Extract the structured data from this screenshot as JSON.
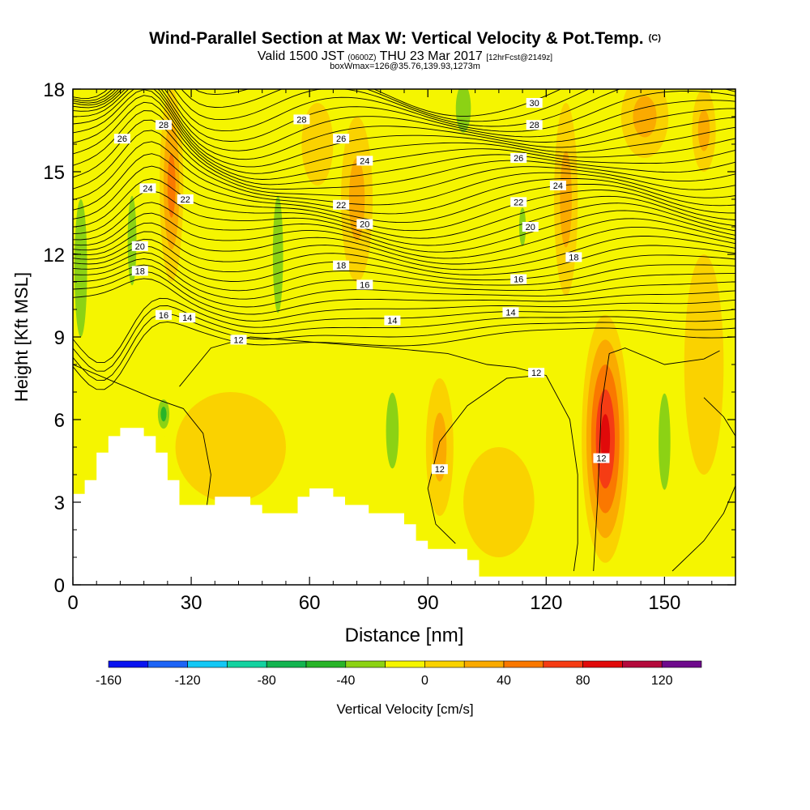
{
  "chart_data": {
    "type": "heatmap",
    "title": "Wind-Parallel Section at Max W: Vertical Velocity & Pot.Temp.",
    "title_suffix": "(C)",
    "subtitle": {
      "prefix": "Valid 1500 JST",
      "utc": "(0600Z)",
      "date": "THU 23 Mar 2017",
      "run": "[12hrFcst@2149z]"
    },
    "subtitle2": "boxWmax=126@35.76,139.93,1273m",
    "xlabel": "Distance [nm]",
    "ylabel": "Height [Kft MSL]",
    "xlim": [
      0,
      168
    ],
    "ylim": [
      0,
      18
    ],
    "x_ticks": [
      0,
      30,
      60,
      90,
      120,
      150
    ],
    "y_ticks": [
      0,
      3,
      6,
      9,
      12,
      15,
      18
    ],
    "colorbar": {
      "label": "Vertical Velocity [cm/s]",
      "tick_labels": [
        -160,
        -120,
        -80,
        -40,
        0,
        40,
        80,
        120
      ],
      "colors": [
        "#0a14f0",
        "#1e64f5",
        "#14c8f5",
        "#14d2a0",
        "#14b450",
        "#28b428",
        "#8cd214",
        "#f5f500",
        "#fad200",
        "#faaa00",
        "#fa7800",
        "#f53c14",
        "#e10a0a",
        "#b40a3c",
        "#6e0a8c"
      ]
    },
    "background_color": "#f5f500",
    "velocity_features": [
      {
        "x": 2,
        "y": 11.5,
        "w": 3.2,
        "h": 10,
        "value": -25
      },
      {
        "x": 15,
        "y": 12.5,
        "w": 2.2,
        "h": 6.5,
        "value": -25
      },
      {
        "x": 23,
        "y": 6.2,
        "w": 2.2,
        "h": 1.6,
        "value": -45
      },
      {
        "x": 52,
        "y": 12,
        "w": 2.6,
        "h": 8.5,
        "value": -25
      },
      {
        "x": 81,
        "y": 5.6,
        "w": 3.2,
        "h": 5.5,
        "value": -30
      },
      {
        "x": 99,
        "y": 17.3,
        "w": 3.8,
        "h": 3.5,
        "value": -25
      },
      {
        "x": 114,
        "y": 13,
        "w": 1.7,
        "h": 2.8,
        "value": -25
      },
      {
        "x": 150,
        "y": 5.2,
        "w": 3,
        "h": 7,
        "value": -25
      },
      {
        "x": 25,
        "y": 14.5,
        "w": 3,
        "h": 7,
        "value": 55
      },
      {
        "x": 135,
        "y": 5.3,
        "w": 6,
        "h": 9,
        "value": 85
      },
      {
        "x": 93,
        "y": 5,
        "w": 3.5,
        "h": 5,
        "value": 35
      },
      {
        "x": 72,
        "y": 14,
        "w": 4,
        "h": 6,
        "value": 25
      },
      {
        "x": 62,
        "y": 16,
        "w": 4,
        "h": 3,
        "value": 20
      },
      {
        "x": 145,
        "y": 17,
        "w": 6,
        "h": 3,
        "value": 25
      },
      {
        "x": 125,
        "y": 14,
        "w": 3,
        "h": 7,
        "value": 25
      },
      {
        "x": 160,
        "y": 16.5,
        "w": 3,
        "h": 3,
        "value": 25
      },
      {
        "x": 40,
        "y": 5,
        "w": 14,
        "h": 4,
        "value": 18
      },
      {
        "x": 108,
        "y": 3,
        "w": 9,
        "h": 4,
        "value": 18
      },
      {
        "x": 160,
        "y": 8,
        "w": 5,
        "h": 8,
        "value": 15
      }
    ],
    "contour_labels": [
      {
        "x": 23,
        "y": 16.7,
        "text": "28"
      },
      {
        "x": 12.5,
        "y": 16.2,
        "text": "26"
      },
      {
        "x": 19,
        "y": 14.4,
        "text": "24"
      },
      {
        "x": 28.5,
        "y": 14,
        "text": "22"
      },
      {
        "x": 17,
        "y": 12.3,
        "text": "20"
      },
      {
        "x": 17,
        "y": 11.4,
        "text": "18"
      },
      {
        "x": 23,
        "y": 9.8,
        "text": "16"
      },
      {
        "x": 29,
        "y": 9.7,
        "text": "14"
      },
      {
        "x": 42,
        "y": 8.9,
        "text": "12"
      },
      {
        "x": 58,
        "y": 16.9,
        "text": "28"
      },
      {
        "x": 68,
        "y": 16.2,
        "text": "26"
      },
      {
        "x": 74,
        "y": 15.4,
        "text": "24"
      },
      {
        "x": 68,
        "y": 13.8,
        "text": "22"
      },
      {
        "x": 74,
        "y": 13.1,
        "text": "20"
      },
      {
        "x": 68,
        "y": 11.6,
        "text": "18"
      },
      {
        "x": 74,
        "y": 10.9,
        "text": "16"
      },
      {
        "x": 81,
        "y": 9.6,
        "text": "14"
      },
      {
        "x": 117,
        "y": 17.5,
        "text": "30"
      },
      {
        "x": 117,
        "y": 16.7,
        "text": "28"
      },
      {
        "x": 113,
        "y": 15.5,
        "text": "26"
      },
      {
        "x": 123,
        "y": 14.5,
        "text": "24"
      },
      {
        "x": 113,
        "y": 13.9,
        "text": "22"
      },
      {
        "x": 116,
        "y": 13,
        "text": "20"
      },
      {
        "x": 127,
        "y": 11.9,
        "text": "18"
      },
      {
        "x": 113,
        "y": 11.1,
        "text": "16"
      },
      {
        "x": 111,
        "y": 9.9,
        "text": "14"
      },
      {
        "x": 93,
        "y": 4.2,
        "text": "12"
      },
      {
        "x": 117.5,
        "y": 7.7,
        "text": "12"
      },
      {
        "x": 134,
        "y": 4.6,
        "text": "12"
      }
    ]
  }
}
